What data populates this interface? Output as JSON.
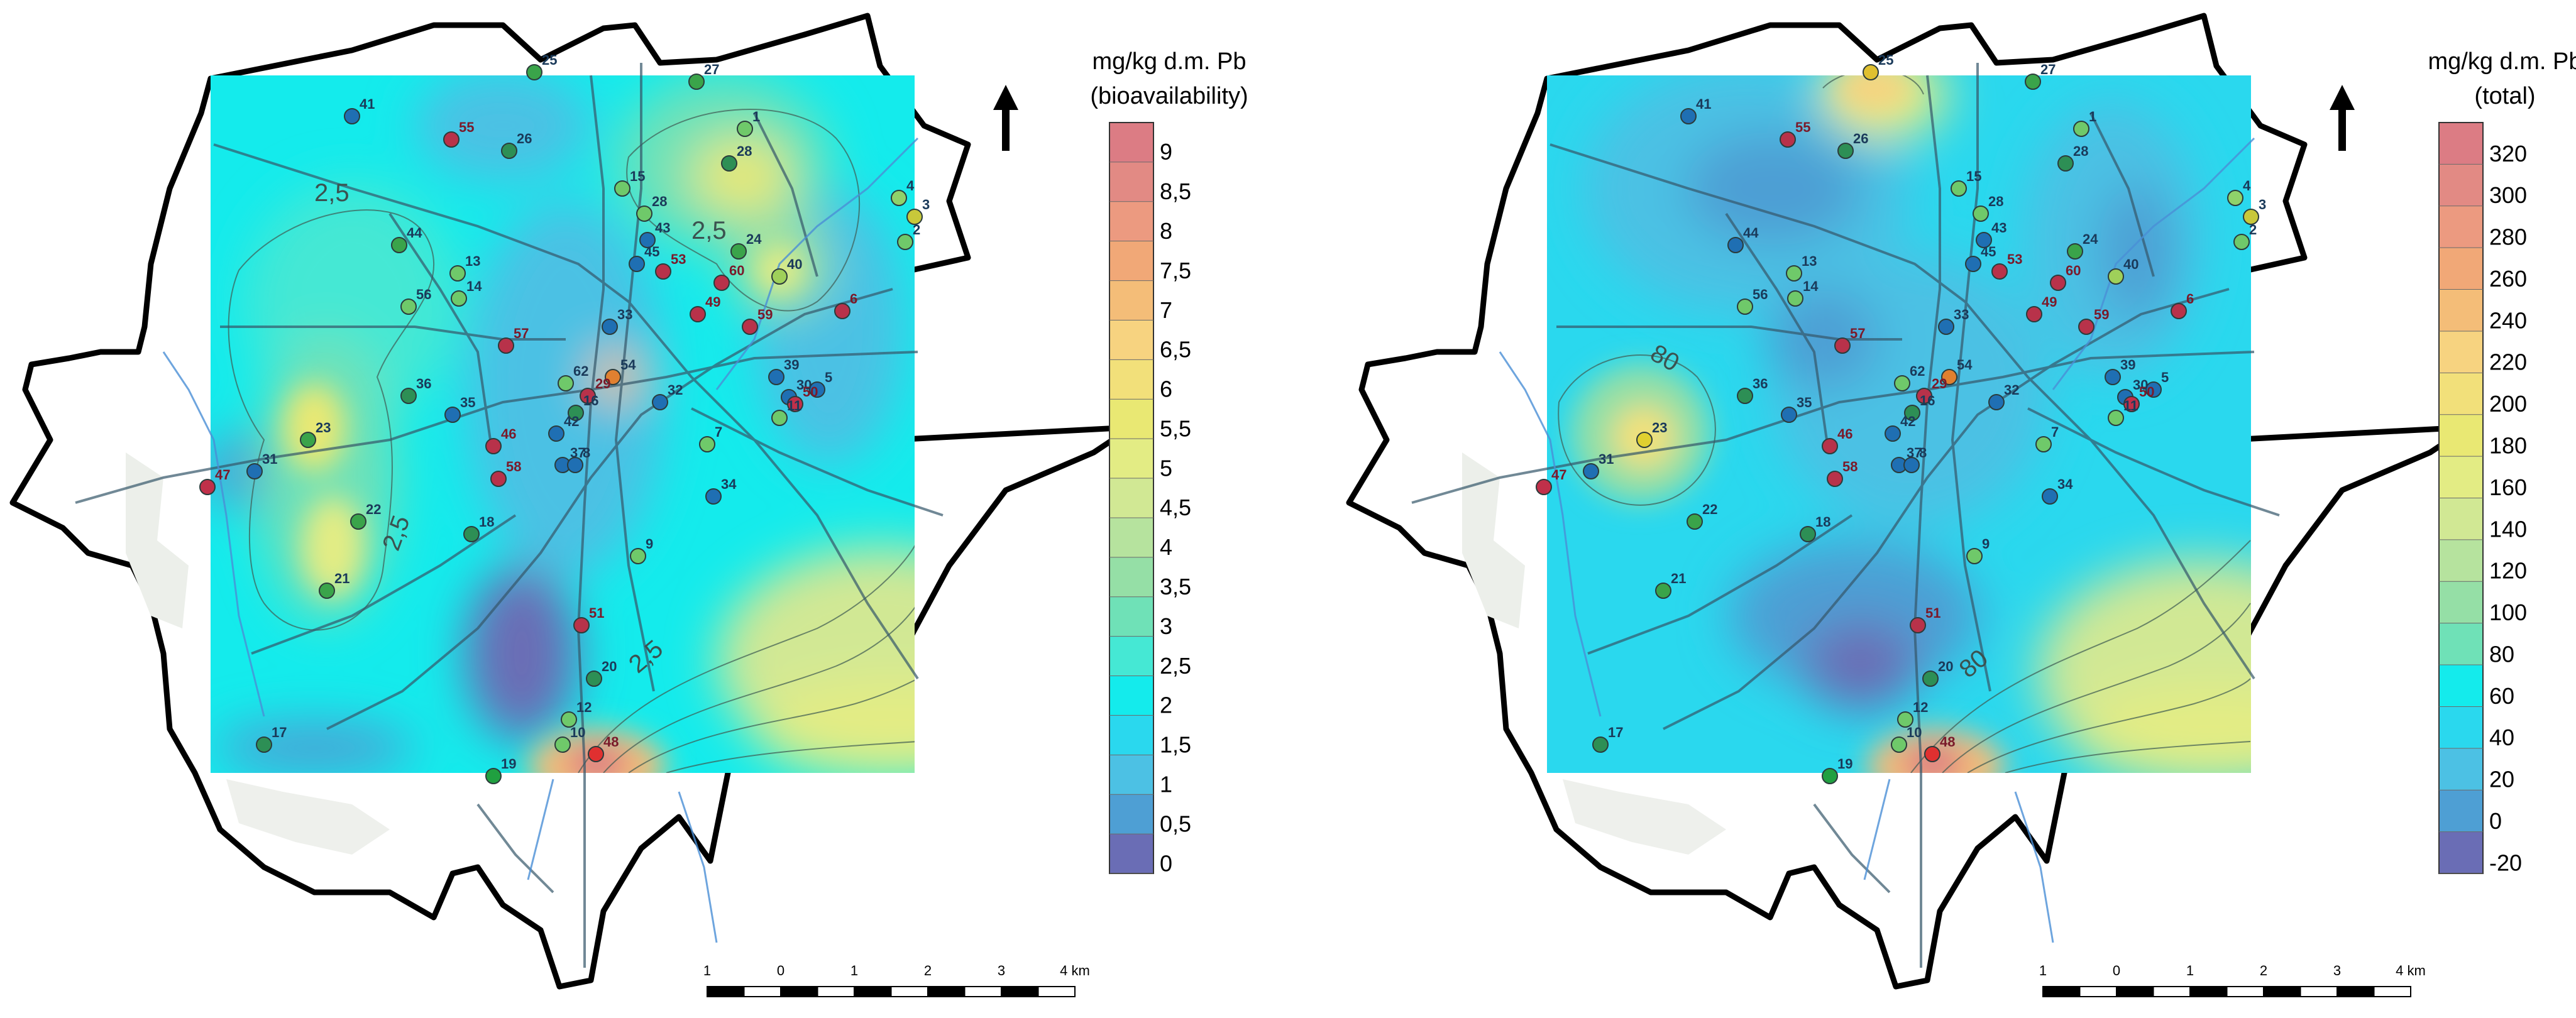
{
  "maps": [
    {
      "id": "bioavailability",
      "legend_title_line1": "mg/kg d.m. Pb",
      "legend_title_line2": "(bioavailability)",
      "legend_labels": [
        "9",
        "8,5",
        "8",
        "7,5",
        "7",
        "6,5",
        "6",
        "5,5",
        "5",
        "4,5",
        "4",
        "3,5",
        "3",
        "2,5",
        "2",
        "1,5",
        "1",
        "0,5",
        "0"
      ],
      "legend_colors": [
        "#dc7c84",
        "#e28a84",
        "#ec9a80",
        "#f1a877",
        "#f4bd78",
        "#f7d380",
        "#f2e07a",
        "#e9e873",
        "#e3ec84",
        "#d1e894",
        "#b6e39e",
        "#95dfa6",
        "#6fe1b7",
        "#45e8d4",
        "#14ebec",
        "#2ad8ee",
        "#4cc1e4",
        "#4e9fd4",
        "#6a6db5"
      ],
      "contour_labels": [
        "2,5",
        "2,5",
        "2,5",
        "2,5"
      ],
      "points": [
        "41",
        "25",
        "27",
        "55",
        "26",
        "1",
        "28",
        "15",
        "4",
        "3",
        "28",
        "43",
        "2",
        "44",
        "45",
        "53",
        "24",
        "13",
        "40",
        "14",
        "60",
        "56",
        "49",
        "59",
        "6",
        "33",
        "57",
        "54",
        "39",
        "5",
        "30",
        "62",
        "29",
        "50",
        "36",
        "35",
        "16",
        "11",
        "23",
        "46",
        "32",
        "42",
        "7",
        "47",
        "31",
        "37",
        "8",
        "58",
        "34",
        "22",
        "18",
        "9",
        "21",
        "51",
        "20",
        "12",
        "17",
        "10",
        "48",
        "19"
      ],
      "scale_ticks": [
        "1",
        "0",
        "1",
        "2",
        "3",
        "4 km"
      ]
    },
    {
      "id": "total",
      "legend_title_line1": "mg/kg d.m. Pb",
      "legend_title_line2": "(total)",
      "legend_labels": [
        "320",
        "300",
        "280",
        "260",
        "240",
        "220",
        "200",
        "180",
        "160",
        "140",
        "120",
        "100",
        "80",
        "60",
        "40",
        "20",
        "0",
        "-20"
      ],
      "legend_colors": [
        "#dc7c84",
        "#e28a84",
        "#ec9a80",
        "#f1a877",
        "#f4bd78",
        "#f7d380",
        "#f2e07a",
        "#e9e873",
        "#e3ec84",
        "#d1e894",
        "#b6e39e",
        "#95dfa6",
        "#6fe1b7",
        "#14ebec",
        "#2ad8ee",
        "#4cc1e4",
        "#4e9fd4",
        "#6a6db5"
      ],
      "contour_labels": [
        "80",
        "80"
      ],
      "points": [
        "41",
        "25",
        "27",
        "55",
        "26",
        "1",
        "28",
        "15",
        "4",
        "3",
        "28",
        "43",
        "2",
        "44",
        "45",
        "53",
        "24",
        "13",
        "40",
        "14",
        "60",
        "56",
        "49",
        "59",
        "6",
        "33",
        "57",
        "54",
        "39",
        "5",
        "30",
        "62",
        "29",
        "50",
        "36",
        "35",
        "16",
        "11",
        "23",
        "46",
        "32",
        "42",
        "7",
        "47",
        "31",
        "37",
        "8",
        "58",
        "34",
        "22",
        "18",
        "9",
        "21",
        "51",
        "20",
        "12",
        "17",
        "10",
        "48",
        "19"
      ],
      "scale_ticks": [
        "1",
        "0",
        "1",
        "2",
        "3",
        "4 km"
      ]
    }
  ],
  "north_arrow_icon": "north-arrow-icon"
}
